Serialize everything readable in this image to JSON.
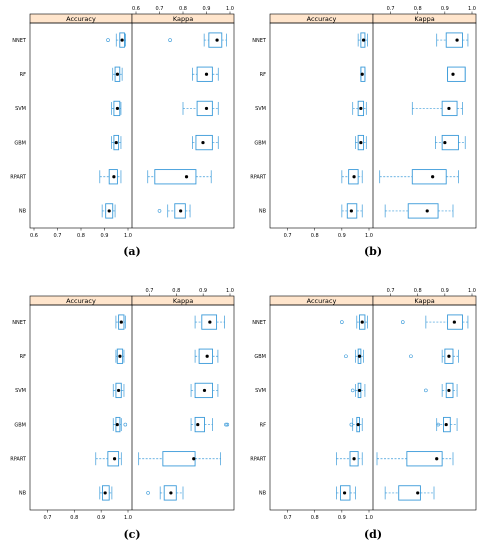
{
  "chart_data": [
    {
      "panel": "(a)",
      "type": "boxplot",
      "facets": [
        "Accuracy",
        "Kappa"
      ],
      "categories": [
        "NNET",
        "RF",
        "SVM",
        "GBM",
        "RPART",
        "NB"
      ],
      "xlim": [
        0.6,
        1.0
      ],
      "ticks_bottom": [
        "0.6",
        "0.7",
        "0.8",
        "0.9",
        "1.0"
      ],
      "ticks_top": [
        "0.6",
        "0.7",
        "0.8",
        "0.9",
        "1.0"
      ],
      "accuracy": [
        {
          "min": 0.95,
          "q1": 0.965,
          "median": 0.975,
          "q3": 0.985,
          "max": 0.99,
          "outliers": [
            0.915
          ]
        },
        {
          "min": 0.935,
          "q1": 0.945,
          "median": 0.955,
          "q3": 0.965,
          "max": 0.975,
          "outliers": []
        },
        {
          "min": 0.93,
          "q1": 0.94,
          "median": 0.955,
          "q3": 0.965,
          "max": 0.97,
          "outliers": []
        },
        {
          "min": 0.93,
          "q1": 0.94,
          "median": 0.95,
          "q3": 0.96,
          "max": 0.97,
          "outliers": []
        },
        {
          "min": 0.88,
          "q1": 0.92,
          "median": 0.94,
          "q3": 0.955,
          "max": 0.97,
          "outliers": []
        },
        {
          "min": 0.89,
          "q1": 0.905,
          "median": 0.92,
          "q3": 0.935,
          "max": 0.945,
          "outliers": []
        }
      ],
      "kappa": [
        {
          "min": 0.89,
          "q1": 0.91,
          "median": 0.945,
          "q3": 0.965,
          "max": 0.985,
          "outliers": [
            0.745
          ]
        },
        {
          "min": 0.84,
          "q1": 0.86,
          "median": 0.9,
          "q3": 0.925,
          "max": 0.95,
          "outliers": []
        },
        {
          "min": 0.8,
          "q1": 0.86,
          "median": 0.9,
          "q3": 0.925,
          "max": 0.95,
          "outliers": []
        },
        {
          "min": 0.84,
          "q1": 0.855,
          "median": 0.885,
          "q3": 0.925,
          "max": 0.95,
          "outliers": []
        },
        {
          "min": 0.65,
          "q1": 0.68,
          "median": 0.815,
          "q3": 0.855,
          "max": 0.92,
          "outliers": []
        },
        {
          "min": 0.735,
          "q1": 0.765,
          "median": 0.79,
          "q3": 0.81,
          "max": 0.83,
          "outliers": [
            0.7
          ]
        }
      ]
    },
    {
      "panel": "(b)",
      "type": "boxplot",
      "facets": [
        "Accuracy",
        "Kappa"
      ],
      "categories": [
        "NNET",
        "RF",
        "SVM",
        "GBM",
        "RPART",
        "NB"
      ],
      "xlim": [
        0.65,
        1.0
      ],
      "ticks_bottom": [
        "0.7",
        "0.8",
        "0.9",
        "1.0"
      ],
      "ticks_top": [
        "0.7",
        "0.8",
        "0.9",
        "1.0"
      ],
      "accuracy": [
        {
          "min": 0.96,
          "q1": 0.97,
          "median": 0.98,
          "q3": 0.985,
          "max": 0.995,
          "outliers": []
        },
        {
          "min": 0.97,
          "q1": 0.97,
          "median": 0.975,
          "q3": 0.985,
          "max": 0.985,
          "outliers": []
        },
        {
          "min": 0.94,
          "q1": 0.96,
          "median": 0.97,
          "q3": 0.98,
          "max": 0.99,
          "outliers": []
        },
        {
          "min": 0.95,
          "q1": 0.96,
          "median": 0.97,
          "q3": 0.98,
          "max": 0.99,
          "outliers": []
        },
        {
          "min": 0.9,
          "q1": 0.925,
          "median": 0.945,
          "q3": 0.96,
          "max": 0.975,
          "outliers": []
        },
        {
          "min": 0.9,
          "q1": 0.92,
          "median": 0.935,
          "q3": 0.955,
          "max": 0.975,
          "outliers": []
        }
      ],
      "kappa": [
        {
          "min": 0.87,
          "q1": 0.905,
          "median": 0.945,
          "q3": 0.965,
          "max": 0.985,
          "outliers": []
        },
        {
          "min": 0.91,
          "q1": 0.91,
          "median": 0.93,
          "q3": 0.975,
          "max": 0.975,
          "outliers": []
        },
        {
          "min": 0.78,
          "q1": 0.89,
          "median": 0.915,
          "q3": 0.945,
          "max": 0.965,
          "outliers": []
        },
        {
          "min": 0.865,
          "q1": 0.89,
          "median": 0.9,
          "q3": 0.95,
          "max": 0.975,
          "outliers": []
        },
        {
          "min": 0.66,
          "q1": 0.78,
          "median": 0.855,
          "q3": 0.905,
          "max": 0.95,
          "outliers": []
        },
        {
          "min": 0.68,
          "q1": 0.765,
          "median": 0.835,
          "q3": 0.875,
          "max": 0.93,
          "outliers": []
        }
      ]
    },
    {
      "panel": "(c)",
      "type": "boxplot",
      "facets": [
        "Accuracy",
        "Kappa"
      ],
      "categories": [
        "NNET",
        "RF",
        "SVM",
        "GBM",
        "RPART",
        "NB"
      ],
      "xlim": [
        0.65,
        1.0
      ],
      "ticks_bottom": [
        "0.7",
        "0.8",
        "0.9",
        "1.0"
      ],
      "ticks_top": [
        "0.7",
        "0.8",
        "0.9",
        "1.0"
      ],
      "accuracy": [
        {
          "min": 0.955,
          "q1": 0.965,
          "median": 0.975,
          "q3": 0.985,
          "max": 0.99,
          "outliers": []
        },
        {
          "min": 0.955,
          "q1": 0.96,
          "median": 0.97,
          "q3": 0.98,
          "max": 0.985,
          "outliers": []
        },
        {
          "min": 0.945,
          "q1": 0.955,
          "median": 0.965,
          "q3": 0.975,
          "max": 0.985,
          "outliers": []
        },
        {
          "min": 0.945,
          "q1": 0.955,
          "median": 0.96,
          "q3": 0.97,
          "max": 0.975,
          "outliers": [
            0.99
          ]
        },
        {
          "min": 0.88,
          "q1": 0.925,
          "median": 0.95,
          "q3": 0.965,
          "max": 0.975,
          "outliers": []
        },
        {
          "min": 0.895,
          "q1": 0.905,
          "median": 0.915,
          "q3": 0.93,
          "max": 0.94,
          "outliers": []
        }
      ],
      "kappa": [
        {
          "min": 0.87,
          "q1": 0.895,
          "median": 0.925,
          "q3": 0.95,
          "max": 0.98,
          "outliers": []
        },
        {
          "min": 0.87,
          "q1": 0.885,
          "median": 0.915,
          "q3": 0.935,
          "max": 0.955,
          "outliers": []
        },
        {
          "min": 0.855,
          "q1": 0.87,
          "median": 0.905,
          "q3": 0.935,
          "max": 0.955,
          "outliers": []
        },
        {
          "min": 0.855,
          "q1": 0.87,
          "median": 0.88,
          "q3": 0.905,
          "max": 0.935,
          "outliers": [
            0.985,
            0.99
          ]
        },
        {
          "min": 0.66,
          "q1": 0.75,
          "median": 0.865,
          "q3": 0.87,
          "max": 0.965,
          "outliers": []
        },
        {
          "min": 0.74,
          "q1": 0.755,
          "median": 0.78,
          "q3": 0.8,
          "max": 0.825,
          "outliers": [
            0.695
          ]
        }
      ]
    },
    {
      "panel": "(d)",
      "type": "boxplot",
      "facets": [
        "Accuracy",
        "Kappa"
      ],
      "categories": [
        "NNET",
        "GBM",
        "SVM",
        "RF",
        "RPART",
        "NB"
      ],
      "xlim": [
        0.65,
        1.0
      ],
      "ticks_bottom": [
        "0.7",
        "0.8",
        "0.9",
        "1.0"
      ],
      "ticks_top": [
        "0.7",
        "0.8",
        "0.9",
        "1.0"
      ],
      "accuracy": [
        {
          "min": 0.955,
          "q1": 0.965,
          "median": 0.975,
          "q3": 0.985,
          "max": 0.995,
          "outliers": [
            0.9
          ]
        },
        {
          "min": 0.95,
          "q1": 0.96,
          "median": 0.965,
          "q3": 0.97,
          "max": 0.98,
          "outliers": [
            0.915
          ]
        },
        {
          "min": 0.95,
          "q1": 0.96,
          "median": 0.965,
          "q3": 0.97,
          "max": 0.985,
          "outliers": [
            0.94
          ]
        },
        {
          "min": 0.94,
          "q1": 0.955,
          "median": 0.96,
          "q3": 0.965,
          "max": 0.975,
          "outliers": [
            0.935
          ]
        },
        {
          "min": 0.88,
          "q1": 0.93,
          "median": 0.945,
          "q3": 0.96,
          "max": 0.975,
          "outliers": []
        },
        {
          "min": 0.88,
          "q1": 0.895,
          "median": 0.91,
          "q3": 0.93,
          "max": 0.95,
          "outliers": []
        }
      ],
      "kappa": [
        {
          "min": 0.83,
          "q1": 0.91,
          "median": 0.935,
          "q3": 0.965,
          "max": 0.985,
          "outliers": [
            0.745
          ]
        },
        {
          "min": 0.89,
          "q1": 0.9,
          "median": 0.915,
          "q3": 0.93,
          "max": 0.95,
          "outliers": [
            0.775
          ]
        },
        {
          "min": 0.89,
          "q1": 0.905,
          "median": 0.915,
          "q3": 0.93,
          "max": 0.945,
          "outliers": [
            0.83
          ]
        },
        {
          "min": 0.87,
          "q1": 0.895,
          "median": 0.905,
          "q3": 0.92,
          "max": 0.945,
          "outliers": [
            0.875
          ]
        },
        {
          "min": 0.65,
          "q1": 0.76,
          "median": 0.87,
          "q3": 0.89,
          "max": 0.93,
          "outliers": []
        },
        {
          "min": 0.68,
          "q1": 0.73,
          "median": 0.8,
          "q3": 0.81,
          "max": 0.86,
          "outliers": []
        }
      ]
    }
  ]
}
